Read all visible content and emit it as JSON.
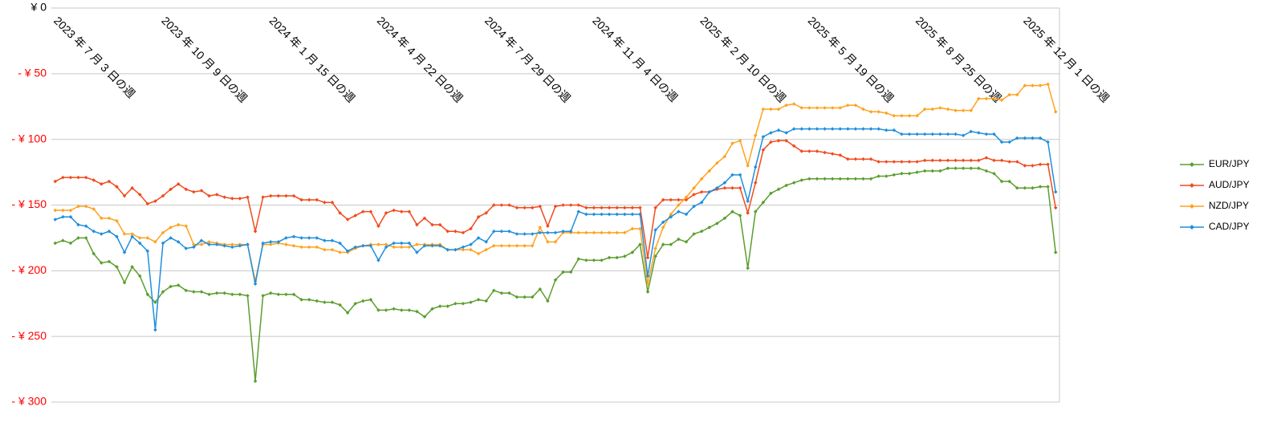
{
  "chart_data": {
    "type": "line",
    "categories": [
      "2023 年 7 月 3 日の週",
      null,
      null,
      null,
      null,
      null,
      null,
      null,
      null,
      null,
      null,
      null,
      null,
      null,
      "2023 年 10 月 9 日の週",
      null,
      null,
      null,
      null,
      null,
      null,
      null,
      null,
      null,
      null,
      null,
      null,
      null,
      "2024 年 1 月 15 日の週",
      null,
      null,
      null,
      null,
      null,
      null,
      null,
      null,
      null,
      null,
      null,
      null,
      null,
      "2024 年 4 月 22 日の週",
      null,
      null,
      null,
      null,
      null,
      null,
      null,
      null,
      null,
      null,
      null,
      null,
      null,
      "2024 年 7 月 29 日の週",
      null,
      null,
      null,
      null,
      null,
      null,
      null,
      null,
      null,
      null,
      null,
      null,
      null,
      "2024 年 11 月 4 日の週",
      null,
      null,
      null,
      null,
      null,
      null,
      null,
      null,
      null,
      null,
      null,
      null,
      null,
      "2025 年 2 月 10 日の週",
      null,
      null,
      null,
      null,
      null,
      null,
      null,
      null,
      null,
      null,
      null,
      null,
      null,
      "2025 年 5 月 19 日の週",
      null,
      null,
      null,
      null,
      null,
      null,
      null,
      null,
      null,
      null,
      null,
      null,
      null,
      "2025 年 8 月 25 日の週",
      null,
      null,
      null,
      null,
      null,
      null,
      null,
      null,
      null,
      null,
      null,
      null,
      null,
      "2025 年 12 月 1 日の週",
      null,
      null,
      null,
      null
    ],
    "series": [
      {
        "name": "EUR/JPY",
        "color": "#5b9e2e",
        "values": [
          -179,
          -177,
          -179,
          -175,
          -175,
          -187,
          -194,
          -193,
          -197,
          -209,
          -197,
          -204,
          -218,
          -224,
          -216,
          -212,
          -211,
          -215,
          -216,
          -216,
          -218,
          -217,
          -217,
          -218,
          -218,
          -219,
          -284,
          -219,
          -217,
          -218,
          -218,
          -218,
          -222,
          -222,
          -223,
          -224,
          -224,
          -226,
          -232,
          -225,
          -223,
          -222,
          -230,
          -230,
          -229,
          -230,
          -230,
          -231,
          -235,
          -229,
          -227,
          -227,
          -225,
          -225,
          -224,
          -222,
          -223,
          -215,
          -217,
          -217,
          -220,
          -220,
          -220,
          -214,
          -223,
          -207,
          -201,
          -201,
          -191,
          -192,
          -192,
          -192,
          -190,
          -190,
          -189,
          -186,
          -180,
          -216,
          -189,
          -180,
          -180,
          -176,
          -178,
          -172,
          -170,
          -167,
          -164,
          -160,
          -155,
          -158,
          -198,
          -155,
          -148,
          -141,
          -138,
          -135,
          -133,
          -131,
          -130,
          -130,
          -130,
          -130,
          -130,
          -130,
          -130,
          -130,
          -130,
          -128,
          -128,
          -127,
          -126,
          -126,
          -125,
          -124,
          -124,
          -124,
          -122,
          -122,
          -122,
          -122,
          -122,
          -124,
          -126,
          -132,
          -132,
          -137,
          -137,
          -137,
          -136,
          -136,
          -186
        ]
      },
      {
        "name": "AUD/JPY",
        "color": "#f24a1d",
        "values": [
          -132,
          -129,
          -129,
          -129,
          -129,
          -131,
          -134,
          -132,
          -136,
          -143,
          -137,
          -142,
          -149,
          -147,
          -143,
          -138,
          -134,
          -138,
          -140,
          -139,
          -143,
          -142,
          -144,
          -145,
          -145,
          -144,
          -170,
          -144,
          -143,
          -143,
          -143,
          -143,
          -146,
          -146,
          -146,
          -148,
          -148,
          -156,
          -161,
          -158,
          -155,
          -155,
          -166,
          -156,
          -154,
          -155,
          -155,
          -165,
          -160,
          -165,
          -165,
          -170,
          -170,
          -171,
          -168,
          -159,
          -156,
          -150,
          -150,
          -150,
          -152,
          -152,
          -152,
          -151,
          -166,
          -151,
          -150,
          -150,
          -150,
          -152,
          -152,
          -152,
          -152,
          -152,
          -152,
          -152,
          -152,
          -190,
          -152,
          -146,
          -146,
          -146,
          -146,
          -142,
          -140,
          -140,
          -138,
          -137,
          -137,
          -137,
          -156,
          -133,
          -108,
          -102,
          -101,
          -101,
          -105,
          -109,
          -109,
          -109,
          -110,
          -111,
          -112,
          -115,
          -115,
          -115,
          -115,
          -117,
          -117,
          -117,
          -117,
          -117,
          -117,
          -116,
          -116,
          -116,
          -116,
          -116,
          -116,
          -116,
          -116,
          -114,
          -116,
          -116,
          -117,
          -117,
          -120,
          -120,
          -119,
          -119,
          -152
        ]
      },
      {
        "name": "NZD/JPY",
        "color": "#ffa21f",
        "values": [
          -154,
          -154,
          -154,
          -151,
          -151,
          -153,
          -160,
          -160,
          -162,
          -172,
          -172,
          -175,
          -175,
          -178,
          -171,
          -167,
          -165,
          -166,
          -180,
          -180,
          -178,
          -179,
          -180,
          -180,
          -180,
          -180,
          -208,
          -180,
          -180,
          -179,
          -180,
          -181,
          -182,
          -182,
          -182,
          -184,
          -184,
          -186,
          -186,
          -183,
          -181,
          -180,
          -180,
          -180,
          -182,
          -182,
          -182,
          -180,
          -180,
          -180,
          -180,
          -184,
          -184,
          -184,
          -184,
          -187,
          -184,
          -181,
          -181,
          -181,
          -181,
          -181,
          -181,
          -167,
          -178,
          -178,
          -171,
          -171,
          -171,
          -171,
          -171,
          -171,
          -171,
          -171,
          -171,
          -168,
          -168,
          -210,
          -183,
          -167,
          -157,
          -150,
          -144,
          -137,
          -130,
          -124,
          -118,
          -113,
          -103,
          -101,
          -120,
          -97,
          -77,
          -77,
          -77,
          -74,
          -73,
          -76,
          -76,
          -76,
          -76,
          -76,
          -76,
          -74,
          -74,
          -77,
          -79,
          -79,
          -80,
          -82,
          -82,
          -82,
          -82,
          -77,
          -77,
          -76,
          -77,
          -78,
          -78,
          -78,
          -69,
          -69,
          -69,
          -70,
          -66,
          -66,
          -59,
          -59,
          -59,
          -58,
          -79
        ]
      },
      {
        "name": "CAD/JPY",
        "color": "#1f8fdc",
        "values": [
          -161,
          -159,
          -159,
          -165,
          -166,
          -170,
          -172,
          -170,
          -174,
          -186,
          -174,
          -179,
          -185,
          -245,
          -179,
          -175,
          -178,
          -183,
          -182,
          -177,
          -180,
          -180,
          -181,
          -182,
          -181,
          -180,
          -210,
          -179,
          -178,
          -178,
          -175,
          -174,
          -175,
          -175,
          -175,
          -177,
          -177,
          -179,
          -185,
          -182,
          -181,
          -181,
          -192,
          -182,
          -179,
          -179,
          -179,
          -186,
          -181,
          -181,
          -181,
          -184,
          -184,
          -182,
          -180,
          -175,
          -178,
          -170,
          -170,
          -170,
          -172,
          -172,
          -172,
          -171,
          -171,
          -171,
          -170,
          -170,
          -155,
          -157,
          -157,
          -157,
          -157,
          -157,
          -157,
          -157,
          -157,
          -204,
          -169,
          -163,
          -159,
          -155,
          -157,
          -151,
          -148,
          -140,
          -137,
          -133,
          -127,
          -127,
          -147,
          -121,
          -98,
          -95,
          -93,
          -95,
          -92,
          -92,
          -92,
          -92,
          -92,
          -92,
          -92,
          -92,
          -92,
          -92,
          -92,
          -92,
          -93,
          -93,
          -96,
          -96,
          -96,
          -96,
          -96,
          -96,
          -96,
          -96,
          -97,
          -94,
          -95,
          -96,
          -96,
          -102,
          -102,
          -99,
          -99,
          -99,
          -99,
          -102,
          -140
        ]
      }
    ],
    "ylim": [
      -300,
      0
    ],
    "yticks": [
      {
        "value": 0,
        "label": "¥ 0"
      },
      {
        "value": -50,
        "label": "- ¥ 50"
      },
      {
        "value": -100,
        "label": "- ¥ 100"
      },
      {
        "value": -150,
        "label": "- ¥ 150"
      },
      {
        "value": -200,
        "label": "- ¥ 200"
      },
      {
        "value": -250,
        "label": "- ¥ 250"
      },
      {
        "value": -300,
        "label": "- ¥ 300"
      }
    ],
    "negative_tick_color": "#ff0000",
    "grid": true,
    "legend": "right"
  }
}
